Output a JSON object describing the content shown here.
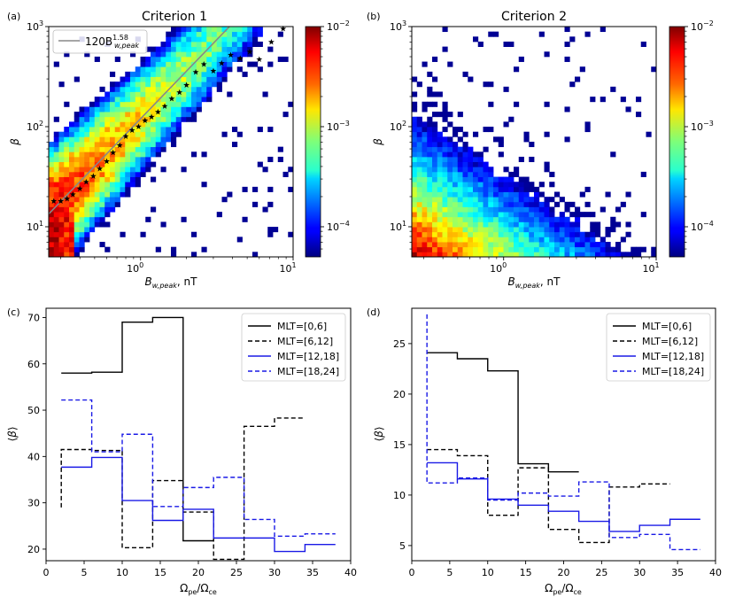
{
  "chart_data": [
    {
      "panel_label": "(a)",
      "type": "heatmap",
      "title": "Criterion 1",
      "xlabel": "B_w,peak, nT",
      "ylabel": "β",
      "x_scale": "log",
      "y_scale": "log",
      "xlim": [
        0.25,
        10
      ],
      "ylim": [
        5,
        1000
      ],
      "x_ticks": [
        {
          "value": 1,
          "base": "10",
          "exp": "0"
        },
        {
          "value": 10,
          "base": "10",
          "exp": "1"
        }
      ],
      "y_ticks": [
        {
          "value": 10,
          "base": "10",
          "exp": "1"
        },
        {
          "value": 100,
          "base": "10",
          "exp": "2"
        },
        {
          "value": 1000,
          "base": "10",
          "exp": "3"
        }
      ],
      "colorbar": {
        "scale": "log",
        "range": [
          5e-05,
          0.01
        ],
        "ticks": [
          {
            "value": 0.0001,
            "base": "10",
            "exp": "−4"
          },
          {
            "value": 0.001,
            "base": "10",
            "exp": "−3"
          },
          {
            "value": 0.01,
            "base": "10",
            "exp": "−2"
          }
        ]
      },
      "fit_line": {
        "legend_label": "120B",
        "legend_sup": "1.58",
        "legend_sub": "w,peak",
        "coefficient": 120,
        "exponent": 1.58,
        "color": "#888888"
      },
      "median_stars": {
        "x": [
          0.27,
          0.3,
          0.33,
          0.36,
          0.4,
          0.44,
          0.49,
          0.54,
          0.6,
          0.66,
          0.73,
          0.8,
          0.88,
          0.97,
          1.07,
          1.18,
          1.3,
          1.44,
          1.6,
          1.8,
          2.0,
          2.3,
          2.6,
          3.0,
          3.4,
          3.9,
          4.5,
          5.2,
          6.0,
          7.2,
          8.6
        ],
        "y": [
          18,
          18,
          19,
          21,
          24,
          28,
          32,
          38,
          45,
          55,
          65,
          80,
          92,
          100,
          115,
          125,
          140,
          160,
          190,
          220,
          260,
          350,
          420,
          360,
          430,
          520,
          480,
          560,
          470,
          700,
          950
        ]
      }
    },
    {
      "panel_label": "(b)",
      "type": "heatmap",
      "title": "Criterion 2",
      "xlabel": "B_w,peak, nT",
      "ylabel": "β",
      "x_scale": "log",
      "y_scale": "log",
      "xlim": [
        0.25,
        10
      ],
      "ylim": [
        5,
        1000
      ],
      "x_ticks": [
        {
          "value": 1,
          "base": "10",
          "exp": "0"
        },
        {
          "value": 10,
          "base": "10",
          "exp": "1"
        }
      ],
      "y_ticks": [
        {
          "value": 10,
          "base": "10",
          "exp": "1"
        },
        {
          "value": 100,
          "base": "10",
          "exp": "2"
        },
        {
          "value": 1000,
          "base": "10",
          "exp": "3"
        }
      ],
      "colorbar": {
        "scale": "log",
        "range": [
          5e-05,
          0.01
        ],
        "ticks": [
          {
            "value": 0.0001,
            "base": "10",
            "exp": "−4"
          },
          {
            "value": 0.001,
            "base": "10",
            "exp": "−3"
          },
          {
            "value": 0.01,
            "base": "10",
            "exp": "−2"
          }
        ]
      }
    },
    {
      "panel_label": "(c)",
      "type": "line",
      "drawstyle": "steps",
      "xlabel": "Ω_pe/Ω_ce",
      "ylabel": "⟨β⟩",
      "xlim": [
        0,
        40
      ],
      "ylim": [
        17.5,
        72
      ],
      "x_ticks": [
        0,
        5,
        10,
        15,
        20,
        25,
        30,
        35,
        40
      ],
      "y_ticks": [
        20,
        30,
        40,
        50,
        60,
        70
      ],
      "legend_position": "top-right",
      "series": [
        {
          "name": "MLT=[0,6]",
          "color": "#000000",
          "dash": "solid",
          "x": [
            2,
            6,
            10,
            14,
            18,
            22
          ],
          "y": [
            58.0,
            58.2,
            69.0,
            70.0,
            21.8,
            21.8
          ],
          "end": 22
        },
        {
          "name": "MLT=[6,12]",
          "color": "#000000",
          "dash": "dashed",
          "x": [
            2,
            6,
            10,
            14,
            18,
            22,
            26,
            30
          ],
          "y": [
            41.5,
            41.3,
            20.3,
            34.8,
            28.0,
            17.8,
            46.5,
            48.3
          ],
          "end": 34,
          "start_from": 29.0
        },
        {
          "name": "MLT=[12,18]",
          "color": "#1a1ae6",
          "dash": "solid",
          "x": [
            2,
            6,
            10,
            14,
            18,
            22,
            26,
            30,
            34
          ],
          "y": [
            37.7,
            39.8,
            30.5,
            26.2,
            28.6,
            22.4,
            22.4,
            19.5,
            21.0
          ],
          "end": 38
        },
        {
          "name": "MLT=[18,24]",
          "color": "#1a1ae6",
          "dash": "dashed",
          "x": [
            2,
            6,
            10,
            14,
            18,
            22,
            26,
            30,
            34
          ],
          "y": [
            52.2,
            41.0,
            44.8,
            29.2,
            33.3,
            35.5,
            26.4,
            22.8,
            23.3
          ],
          "end": 38
        }
      ]
    },
    {
      "panel_label": "(d)",
      "type": "line",
      "drawstyle": "steps",
      "xlabel": "Ω_pe/Ω_ce",
      "ylabel": "⟨β⟩",
      "xlim": [
        0,
        40
      ],
      "ylim": [
        3.5,
        28.5
      ],
      "x_ticks": [
        0,
        5,
        10,
        15,
        20,
        25,
        30,
        35,
        40
      ],
      "y_ticks": [
        5,
        10,
        15,
        20,
        25
      ],
      "legend_position": "top-right",
      "series": [
        {
          "name": "MLT=[0,6]",
          "color": "#000000",
          "dash": "solid",
          "x": [
            2,
            6,
            10,
            14,
            18
          ],
          "y": [
            24.1,
            23.5,
            22.3,
            13.1,
            12.3
          ],
          "end": 22
        },
        {
          "name": "MLT=[6,12]",
          "color": "#000000",
          "dash": "dashed",
          "x": [
            2,
            6,
            10,
            14,
            18,
            22,
            26,
            30
          ],
          "y": [
            14.5,
            13.9,
            8.0,
            12.7,
            6.6,
            5.3,
            10.8,
            11.1
          ],
          "end": 34
        },
        {
          "name": "MLT=[12,18]",
          "color": "#1a1ae6",
          "dash": "solid",
          "x": [
            2,
            6,
            10,
            14,
            18,
            22,
            26,
            30,
            34
          ],
          "y": [
            13.2,
            11.6,
            9.6,
            9.0,
            8.4,
            7.4,
            6.4,
            7.0,
            7.6
          ],
          "end": 38
        },
        {
          "name": "MLT=[18,24]",
          "color": "#1a1ae6",
          "dash": "dashed",
          "x": [
            2,
            6,
            10,
            14,
            18,
            22,
            26,
            30,
            34
          ],
          "y": [
            11.2,
            11.7,
            9.5,
            10.2,
            9.9,
            11.3,
            5.8,
            6.1,
            4.6
          ],
          "end": 38,
          "start_from": 27.9
        }
      ]
    }
  ]
}
